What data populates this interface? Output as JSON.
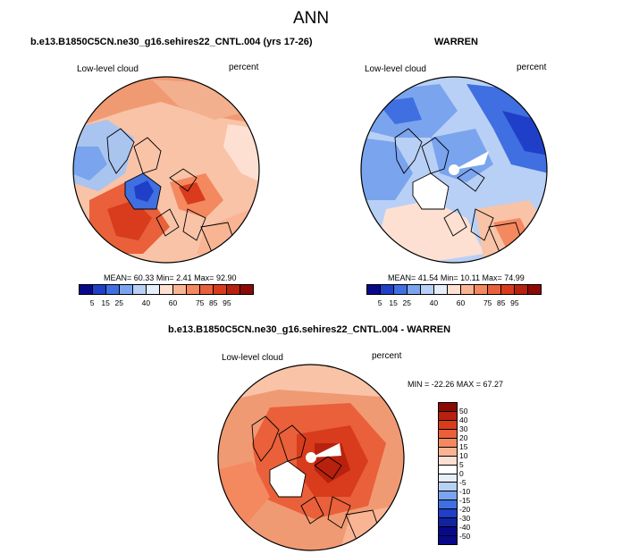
{
  "figure": {
    "title": "ANN"
  },
  "panels": {
    "p1": {
      "title": "b.e13.B1850C5CN.ne30_g16.sehires22_CNTL.004 (yrs 17-26)",
      "left_label": "Low-level cloud",
      "right_label": "percent",
      "mean_label": "MEAN=",
      "mean": "60.33",
      "min_label": "Min=",
      "min": "2.41",
      "max_label": "Max=",
      "max": "92.90"
    },
    "p2": {
      "title": "WARREN",
      "left_label": "Low-level cloud",
      "right_label": "percent",
      "mean_label": "MEAN=",
      "mean": "41.54",
      "min_label": "Min=",
      "min": "10.11",
      "max_label": "Max=",
      "max": "74.99"
    },
    "p3": {
      "title": "b.e13.B1850C5CN.ne30_g16.sehires22_CNTL.004 - WARREN",
      "left_label": "Low-level cloud",
      "right_label": "percent",
      "minmax": "MIN = -22.26 MAX =  67.27"
    }
  },
  "colorbar_abs": {
    "labels": [
      "5",
      "15",
      "25",
      "40",
      "60",
      "75",
      "85",
      "95"
    ],
    "colors": [
      "#08088a",
      "#1f3fc8",
      "#3f6fe0",
      "#7aa4ee",
      "#b8d0f5",
      "#e6eefa",
      "#fde0d2",
      "#f9b494",
      "#f4885f",
      "#e9603a",
      "#d83c1c",
      "#b8210d",
      "#8c0a05"
    ]
  },
  "colorbar_diff": {
    "labels": [
      "50",
      "40",
      "30",
      "20",
      "15",
      "10",
      "5",
      "0",
      "-5",
      "-10",
      "-15",
      "-20",
      "-30",
      "-40",
      "-50"
    ],
    "colors": [
      "#8c0a05",
      "#b8210d",
      "#d83c1c",
      "#e9603a",
      "#f4885f",
      "#f9b494",
      "#fde0d2",
      "#ffffff",
      "#e6eefa",
      "#b8d0f5",
      "#7aa4ee",
      "#3f6fe0",
      "#1f3fc8",
      "#12239e",
      "#08088a"
    ]
  }
}
